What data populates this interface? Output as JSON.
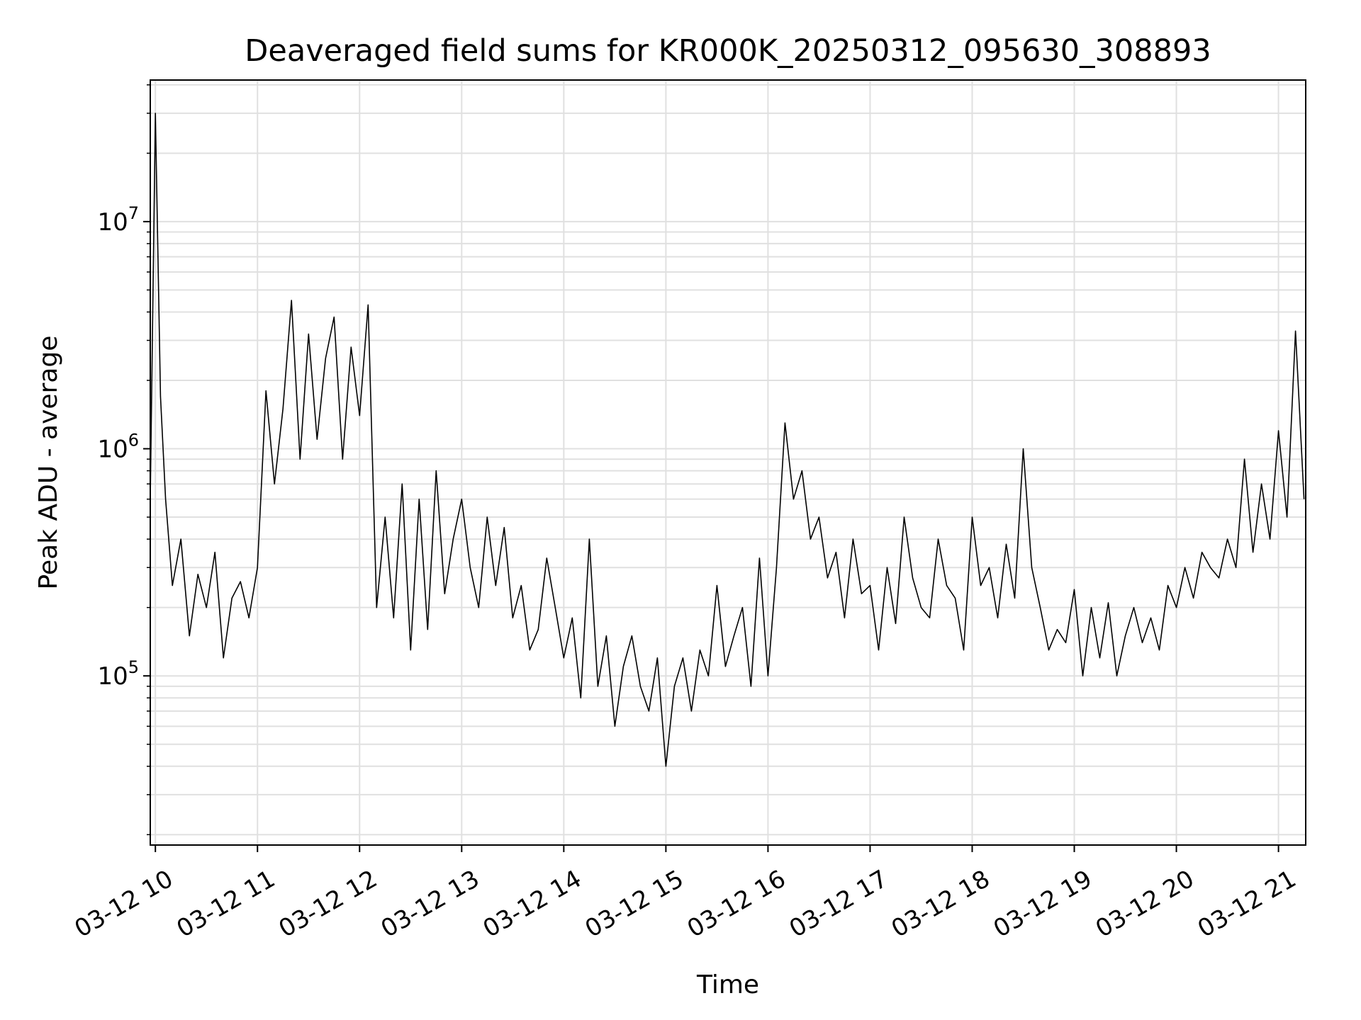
{
  "chart_data": {
    "type": "line",
    "title": "Deaveraged field sums for KR000K_20250312_095630_308893",
    "xlabel": "Time",
    "ylabel": "Peak ADU - average",
    "y_scale": "log",
    "grid": true,
    "legend": "none",
    "line_color": "#000000",
    "grid_color": "#e0e0e0",
    "xlim": [
      "2025-03-12 09:57",
      "2025-03-12 21:16"
    ],
    "ylim": [
      18000,
      42000000
    ],
    "x_ticks": [
      {
        "value": "2025-03-12 10:00",
        "label": "03-12 10"
      },
      {
        "value": "2025-03-12 11:00",
        "label": "03-12 11"
      },
      {
        "value": "2025-03-12 12:00",
        "label": "03-12 12"
      },
      {
        "value": "2025-03-12 13:00",
        "label": "03-12 13"
      },
      {
        "value": "2025-03-12 14:00",
        "label": "03-12 14"
      },
      {
        "value": "2025-03-12 15:00",
        "label": "03-12 15"
      },
      {
        "value": "2025-03-12 16:00",
        "label": "03-12 16"
      },
      {
        "value": "2025-03-12 17:00",
        "label": "03-12 17"
      },
      {
        "value": "2025-03-12 18:00",
        "label": "03-12 18"
      },
      {
        "value": "2025-03-12 19:00",
        "label": "03-12 19"
      },
      {
        "value": "2025-03-12 20:00",
        "label": "03-12 20"
      },
      {
        "value": "2025-03-12 21:00",
        "label": "03-12 21"
      }
    ],
    "y_ticks": [
      {
        "value": 100000,
        "base": "10",
        "exp": "5"
      },
      {
        "value": 1000000,
        "base": "10",
        "exp": "6"
      },
      {
        "value": 10000000,
        "base": "10",
        "exp": "7"
      }
    ],
    "series": [
      {
        "x": [
          "2025-03-12 09:57",
          "2025-03-12 10:00",
          "2025-03-12 10:03",
          "2025-03-12 10:06",
          "2025-03-12 10:10",
          "2025-03-12 10:15",
          "2025-03-12 10:20",
          "2025-03-12 10:25",
          "2025-03-12 10:30",
          "2025-03-12 10:35",
          "2025-03-12 10:40",
          "2025-03-12 10:45",
          "2025-03-12 10:50",
          "2025-03-12 10:55",
          "2025-03-12 11:00",
          "2025-03-12 11:05",
          "2025-03-12 11:10",
          "2025-03-12 11:15",
          "2025-03-12 11:20",
          "2025-03-12 11:25",
          "2025-03-12 11:30",
          "2025-03-12 11:35",
          "2025-03-12 11:40",
          "2025-03-12 11:45",
          "2025-03-12 11:50",
          "2025-03-12 11:55",
          "2025-03-12 12:00",
          "2025-03-12 12:05",
          "2025-03-12 12:10",
          "2025-03-12 12:15",
          "2025-03-12 12:20",
          "2025-03-12 12:25",
          "2025-03-12 12:30",
          "2025-03-12 12:35",
          "2025-03-12 12:40",
          "2025-03-12 12:45",
          "2025-03-12 12:50",
          "2025-03-12 12:55",
          "2025-03-12 13:00",
          "2025-03-12 13:05",
          "2025-03-12 13:10",
          "2025-03-12 13:15",
          "2025-03-12 13:20",
          "2025-03-12 13:25",
          "2025-03-12 13:30",
          "2025-03-12 13:35",
          "2025-03-12 13:40",
          "2025-03-12 13:45",
          "2025-03-12 13:50",
          "2025-03-12 13:55",
          "2025-03-12 14:00",
          "2025-03-12 14:05",
          "2025-03-12 14:10",
          "2025-03-12 14:15",
          "2025-03-12 14:20",
          "2025-03-12 14:25",
          "2025-03-12 14:30",
          "2025-03-12 14:35",
          "2025-03-12 14:40",
          "2025-03-12 14:45",
          "2025-03-12 14:50",
          "2025-03-12 14:55",
          "2025-03-12 15:00",
          "2025-03-12 15:05",
          "2025-03-12 15:10",
          "2025-03-12 15:15",
          "2025-03-12 15:20",
          "2025-03-12 15:25",
          "2025-03-12 15:30",
          "2025-03-12 15:35",
          "2025-03-12 15:40",
          "2025-03-12 15:45",
          "2025-03-12 15:50",
          "2025-03-12 15:55",
          "2025-03-12 16:00",
          "2025-03-12 16:05",
          "2025-03-12 16:10",
          "2025-03-12 16:15",
          "2025-03-12 16:20",
          "2025-03-12 16:25",
          "2025-03-12 16:30",
          "2025-03-12 16:35",
          "2025-03-12 16:40",
          "2025-03-12 16:45",
          "2025-03-12 16:50",
          "2025-03-12 16:55",
          "2025-03-12 17:00",
          "2025-03-12 17:05",
          "2025-03-12 17:10",
          "2025-03-12 17:15",
          "2025-03-12 17:20",
          "2025-03-12 17:25",
          "2025-03-12 17:30",
          "2025-03-12 17:35",
          "2025-03-12 17:40",
          "2025-03-12 17:45",
          "2025-03-12 17:50",
          "2025-03-12 17:55",
          "2025-03-12 18:00",
          "2025-03-12 18:05",
          "2025-03-12 18:10",
          "2025-03-12 18:15",
          "2025-03-12 18:20",
          "2025-03-12 18:25",
          "2025-03-12 18:30",
          "2025-03-12 18:35",
          "2025-03-12 18:40",
          "2025-03-12 18:45",
          "2025-03-12 18:50",
          "2025-03-12 18:55",
          "2025-03-12 19:00",
          "2025-03-12 19:05",
          "2025-03-12 19:10",
          "2025-03-12 19:15",
          "2025-03-12 19:20",
          "2025-03-12 19:25",
          "2025-03-12 19:30",
          "2025-03-12 19:35",
          "2025-03-12 19:40",
          "2025-03-12 19:45",
          "2025-03-12 19:50",
          "2025-03-12 19:55",
          "2025-03-12 20:00",
          "2025-03-12 20:05",
          "2025-03-12 20:10",
          "2025-03-12 20:15",
          "2025-03-12 20:20",
          "2025-03-12 20:25",
          "2025-03-12 20:30",
          "2025-03-12 20:35",
          "2025-03-12 20:40",
          "2025-03-12 20:45",
          "2025-03-12 20:50",
          "2025-03-12 20:55",
          "2025-03-12 21:00",
          "2025-03-12 21:05",
          "2025-03-12 21:10",
          "2025-03-12 21:15"
        ],
        "y": [
          600000,
          30000000,
          1700000,
          600000,
          250000,
          400000,
          150000,
          280000,
          200000,
          350000,
          120000,
          220000,
          260000,
          180000,
          300000,
          1800000,
          700000,
          1500000,
          4500000,
          900000,
          3200000,
          1100000,
          2500000,
          3800000,
          900000,
          2800000,
          1400000,
          4300000,
          200000,
          500000,
          180000,
          700000,
          130000,
          600000,
          160000,
          800000,
          230000,
          400000,
          600000,
          300000,
          200000,
          500000,
          250000,
          450000,
          180000,
          250000,
          130000,
          160000,
          330000,
          200000,
          120000,
          180000,
          80000,
          400000,
          90000,
          150000,
          60000,
          110000,
          150000,
          90000,
          70000,
          120000,
          40000,
          90000,
          120000,
          70000,
          130000,
          100000,
          250000,
          110000,
          150000,
          200000,
          90000,
          330000,
          100000,
          300000,
          1300000,
          600000,
          800000,
          400000,
          500000,
          270000,
          350000,
          180000,
          400000,
          230000,
          250000,
          130000,
          300000,
          170000,
          500000,
          270000,
          200000,
          180000,
          400000,
          250000,
          220000,
          130000,
          500000,
          250000,
          300000,
          180000,
          380000,
          220000,
          1000000,
          300000,
          200000,
          130000,
          160000,
          140000,
          240000,
          100000,
          200000,
          120000,
          210000,
          100000,
          150000,
          200000,
          140000,
          180000,
          130000,
          250000,
          200000,
          300000,
          220000,
          350000,
          300000,
          270000,
          400000,
          300000,
          900000,
          350000,
          700000,
          400000,
          1200000,
          500000,
          3300000,
          600000
        ]
      }
    ]
  }
}
